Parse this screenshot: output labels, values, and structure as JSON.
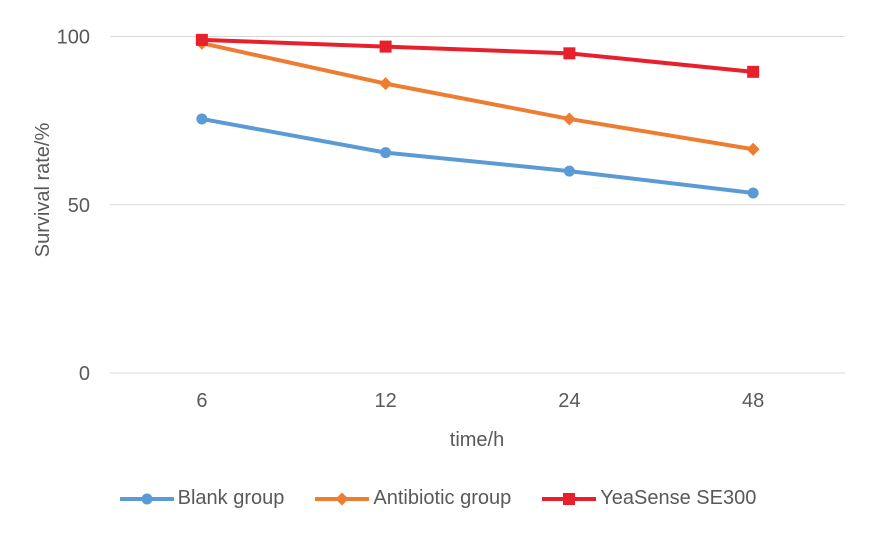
{
  "chart_data": {
    "type": "line",
    "title": "",
    "xlabel": "time/h",
    "ylabel": "Survival rate/%",
    "categories": [
      "6",
      "12",
      "24",
      "48"
    ],
    "yticks": [
      0,
      50,
      100
    ],
    "ylim": [
      0,
      110
    ],
    "grid": "horizontal gridlines at y = 0, 50, 100",
    "legend_position": "bottom",
    "series": [
      {
        "name": "Blank group",
        "marker": "circle",
        "color": "#5B9BD5",
        "values": [
          75.5,
          65.5,
          60,
          53.5
        ]
      },
      {
        "name": "Antibiotic group",
        "marker": "diamond",
        "color": "#ED7D31",
        "values": [
          98,
          86,
          75.5,
          66.5
        ]
      },
      {
        "name": "YeaSense SE300",
        "marker": "square",
        "color": "#E8202C",
        "values": [
          99,
          97,
          95,
          89.5
        ]
      }
    ]
  },
  "style": {
    "axis_text_color": "#595959",
    "gridline_color": "#D9D9D9",
    "background": "#FFFFFF"
  }
}
